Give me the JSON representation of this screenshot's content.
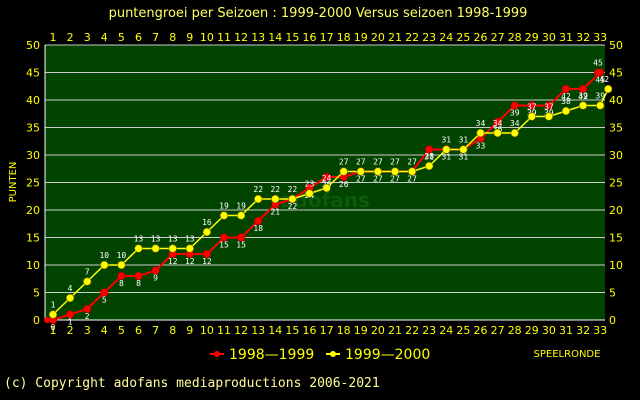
{
  "chart_data": {
    "type": "line",
    "title": "puntengroei per Seizoen : 1999-2000 Versus seizoen 1998-1999",
    "ylabel": "PUNTEN",
    "xlabel": "SPEELRONDE",
    "x": [
      1,
      2,
      3,
      4,
      5,
      6,
      7,
      8,
      9,
      10,
      11,
      12,
      13,
      14,
      15,
      16,
      17,
      18,
      19,
      20,
      21,
      22,
      23,
      24,
      25,
      26,
      27,
      28,
      29,
      30,
      31,
      32,
      33
    ],
    "x_ticks": [
      "1",
      "2",
      "3",
      "4",
      "5",
      "6",
      "7",
      "8",
      "9",
      "10",
      "11",
      "12",
      "13",
      "14",
      "15",
      "16",
      "17",
      "18",
      "19",
      "20",
      "21",
      "22",
      "23",
      "24",
      "25",
      "26",
      "27",
      "28",
      "29",
      "30",
      "31",
      "32",
      "33"
    ],
    "y_ticks": [
      "0",
      "5",
      "10",
      "15",
      "20",
      "25",
      "30",
      "35",
      "40",
      "45",
      "50"
    ],
    "ylim": [
      0,
      50
    ],
    "grid": true,
    "legend_position": "bottom",
    "series": [
      {
        "name": "1998—1999",
        "color": "#ff0000",
        "values": [
          0,
          1,
          2,
          5,
          8,
          8,
          9,
          12,
          12,
          12,
          15,
          15,
          18,
          21,
          22,
          24,
          26,
          26,
          27,
          27,
          27,
          27,
          31,
          31,
          31,
          33,
          36,
          39,
          39,
          39,
          42,
          42,
          45
        ]
      },
      {
        "name": "1999—2000",
        "color": "#ffff00",
        "values": [
          1,
          4,
          7,
          10,
          10,
          13,
          13,
          13,
          13,
          16,
          19,
          19,
          22,
          22,
          22,
          23,
          24,
          27,
          27,
          27,
          27,
          27,
          28,
          31,
          31,
          34,
          34,
          34,
          37,
          37,
          38,
          39,
          39
        ]
      }
    ],
    "end_labels": {
      "left": "0",
      "right": "45"
    },
    "extra_point": {
      "series": 1,
      "value": 42
    }
  },
  "copyright": "(c) Copyright adofans mediaproductions 2006-2021",
  "watermark": "adofans",
  "colors": {
    "background": "#000000",
    "plot_background": "#004400",
    "grid": "#cccccc",
    "axis": "#ffffff",
    "text": "#ffff00"
  }
}
